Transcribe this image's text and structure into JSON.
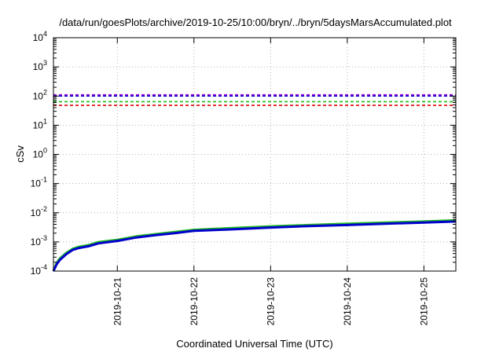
{
  "chart_data": {
    "type": "line",
    "title": "/data/run/goesPlots/archive/2019-10-25/10:00/bryn/../bryn/5daysMarsAccumulated.plot",
    "xlabel": "Coordinated Universal Time (UTC)",
    "ylabel": "cSv",
    "yscale": "log",
    "ylim": [
      0.0001,
      10000
    ],
    "y_ticks": [
      {
        "value": 0.0001,
        "base": "10",
        "exp": "-4"
      },
      {
        "value": 0.001,
        "base": "10",
        "exp": "-3"
      },
      {
        "value": 0.01,
        "base": "10",
        "exp": "-2"
      },
      {
        "value": 0.1,
        "base": "10",
        "exp": "-1"
      },
      {
        "value": 1,
        "base": "10",
        "exp": "0"
      },
      {
        "value": 10,
        "base": "10",
        "exp": "1"
      },
      {
        "value": 100,
        "base": "10",
        "exp": "2"
      },
      {
        "value": 1000,
        "base": "10",
        "exp": "3"
      },
      {
        "value": 10000,
        "base": "10",
        "exp": "4"
      }
    ],
    "xlim": [
      "2019-10-20T04:00",
      "2019-10-25T10:00"
    ],
    "x_ticks": [
      "2019-10-21",
      "2019-10-22",
      "2019-10-23",
      "2019-10-24",
      "2019-10-25"
    ],
    "grid": true,
    "reference_lines": [
      {
        "y": 110,
        "color": "#9400d3",
        "style": "dashed"
      },
      {
        "y": 100,
        "color": "#0000cc",
        "style": "dashed"
      },
      {
        "y": 64,
        "color": "#22bb22",
        "style": "dashed"
      },
      {
        "y": 48,
        "color": "#dd0000",
        "style": "dashed"
      }
    ],
    "series": [
      {
        "color": "#22bb22",
        "x": [
          "2019-10-20T04:00",
          "2019-10-20T05:00",
          "2019-10-20T06:00",
          "2019-10-20T08:00",
          "2019-10-20T10:00",
          "2019-10-20T12:00",
          "2019-10-20T15:00",
          "2019-10-20T18:00",
          "2019-10-21T00:00",
          "2019-10-21T06:00",
          "2019-10-21T12:00",
          "2019-10-21T18:00",
          "2019-10-22T00:00",
          "2019-10-22T12:00",
          "2019-10-23T00:00",
          "2019-10-23T12:00",
          "2019-10-24T00:00",
          "2019-10-24T12:00",
          "2019-10-25T00:00",
          "2019-10-25T10:00"
        ],
        "y": [
          0.0001,
          0.00019,
          0.00027,
          0.00042,
          0.00058,
          0.00068,
          0.00078,
          0.00098,
          0.00118,
          0.00155,
          0.00185,
          0.0022,
          0.0026,
          0.003,
          0.0034,
          0.0038,
          0.0042,
          0.0046,
          0.005,
          0.0055
        ]
      },
      {
        "color": "#0000cc",
        "x": [
          "2019-10-20T04:00",
          "2019-10-20T05:00",
          "2019-10-20T06:00",
          "2019-10-20T08:00",
          "2019-10-20T10:00",
          "2019-10-20T12:00",
          "2019-10-20T15:00",
          "2019-10-20T18:00",
          "2019-10-21T00:00",
          "2019-10-21T06:00",
          "2019-10-21T12:00",
          "2019-10-21T18:00",
          "2019-10-22T00:00",
          "2019-10-22T12:00",
          "2019-10-23T00:00",
          "2019-10-23T12:00",
          "2019-10-24T00:00",
          "2019-10-24T12:00",
          "2019-10-25T00:00",
          "2019-10-25T10:00"
        ],
        "y": [
          0.0001,
          0.00017,
          0.00024,
          0.00038,
          0.00053,
          0.00062,
          0.00071,
          0.00089,
          0.00108,
          0.00142,
          0.0017,
          0.002,
          0.0024,
          0.0027,
          0.0031,
          0.0035,
          0.0038,
          0.0042,
          0.0046,
          0.005
        ]
      }
    ]
  }
}
